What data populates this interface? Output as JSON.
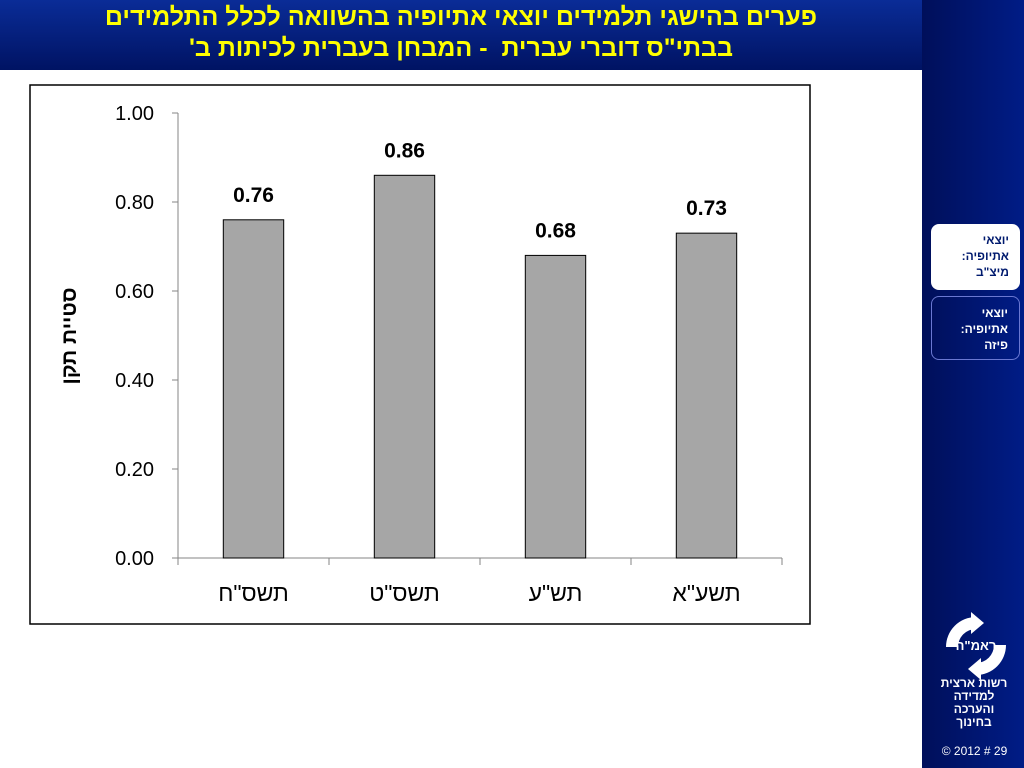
{
  "slide": {
    "title_lines": [
      "פערים בהישגי תלמידים יוצאי אתיופיה בהשוואה לכלל התלמידים",
      "בבתי\"ס דוברי עברית  - המבחן בעברית לכיתות ב'"
    ]
  },
  "sidebar": {
    "nav_items": [
      {
        "lines": [
          "יוצאי",
          "אתיופיה:",
          "מיצ\"ב"
        ],
        "active": true
      },
      {
        "lines": [
          "יוצאי",
          "אתיופיה:",
          "פיזה"
        ],
        "active": false
      }
    ],
    "logo_text": "ראמ\"ה",
    "org_lines": [
      "רשות ארצית",
      "למדידה",
      "והערכה",
      "בחינוך"
    ],
    "footer": "© 2012 # 29"
  },
  "colors": {
    "title_bar": "#00186e",
    "title_text": "#ffff00",
    "sidebar": "#001478",
    "bar_fill": "#a6a6a6",
    "bar_stroke": "#000000"
  },
  "chart_data": {
    "type": "bar",
    "categories": [
      "תשס\"ח",
      "תשס\"ט",
      "תש\"ע",
      "תשע\"א"
    ],
    "values": [
      0.76,
      0.86,
      0.68,
      0.73
    ],
    "data_labels": [
      "0.76",
      "0.86",
      "0.68",
      "0.73"
    ],
    "ylabel": "סטיית תקן",
    "xlabel": "",
    "ylim": [
      0,
      1
    ],
    "yticks": [
      "0.00",
      "0.20",
      "0.40",
      "0.60",
      "0.80",
      "1.00"
    ],
    "ytick_values": [
      0,
      0.2,
      0.4,
      0.6,
      0.8,
      1.0
    ],
    "grid": false,
    "legend": "none"
  }
}
